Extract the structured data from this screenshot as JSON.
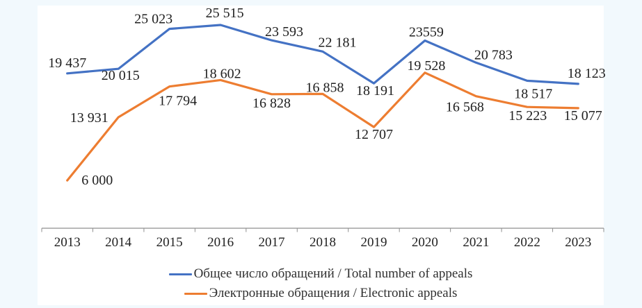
{
  "chart_data": {
    "type": "line",
    "categories": [
      "2013",
      "2014",
      "2015",
      "2016",
      "2017",
      "2018",
      "2019",
      "2020",
      "2021",
      "2022",
      "2023"
    ],
    "series": [
      {
        "name": "Общее число обращений / Total number of appeals",
        "color": "#4472C4",
        "values": [
          19437,
          20015,
          25023,
          25515,
          23593,
          22181,
          18191,
          23559,
          20783,
          18517,
          18123
        ],
        "labels": [
          "19 437",
          "20 015",
          "25 023",
          "25 515",
          "23 593",
          "22 181",
          "18 191",
          "23559",
          "20 783",
          "18 517",
          "18 123"
        ],
        "label_offsets": [
          [
            0,
            -9
          ],
          [
            3,
            16
          ],
          [
            -23,
            -8
          ],
          [
            6,
            -11
          ],
          [
            18,
            -6
          ],
          [
            21,
            -7
          ],
          [
            2,
            17
          ],
          [
            2,
            -6
          ],
          [
            25,
            -5
          ],
          [
            9,
            25
          ],
          [
            12,
            -9
          ]
        ]
      },
      {
        "name": "Электронные обращения / Electronic appeals",
        "color": "#ED7D31",
        "values": [
          6000,
          13931,
          17794,
          18602,
          16828,
          16858,
          12707,
          19528,
          16568,
          15223,
          15077
        ],
        "labels": [
          "6 000",
          "13 931",
          "17 794",
          "18 602",
          "16 828",
          "16 858",
          "12 707",
          "19 528",
          "16 568",
          "15 223",
          "15 077"
        ],
        "label_offsets": [
          [
            43,
            6
          ],
          [
            -42,
            7
          ],
          [
            12,
            27
          ],
          [
            2,
            -3
          ],
          [
            0,
            19
          ],
          [
            3,
            -3
          ],
          [
            0,
            17
          ],
          [
            2,
            -4
          ],
          [
            -16,
            22
          ],
          [
            1,
            19
          ],
          [
            7,
            17
          ]
        ]
      }
    ],
    "title": "",
    "xlabel": "",
    "ylabel": "",
    "ylim": [
      0,
      27500
    ],
    "grid": false,
    "legend_position": "bottom",
    "data_labels": true
  },
  "colors": {
    "background": "#f2f9fd",
    "panel": "#ffffff",
    "axis": "#8f8f8f",
    "label_text": "#1f1f1f",
    "tick_text": "#1f1f1f"
  }
}
